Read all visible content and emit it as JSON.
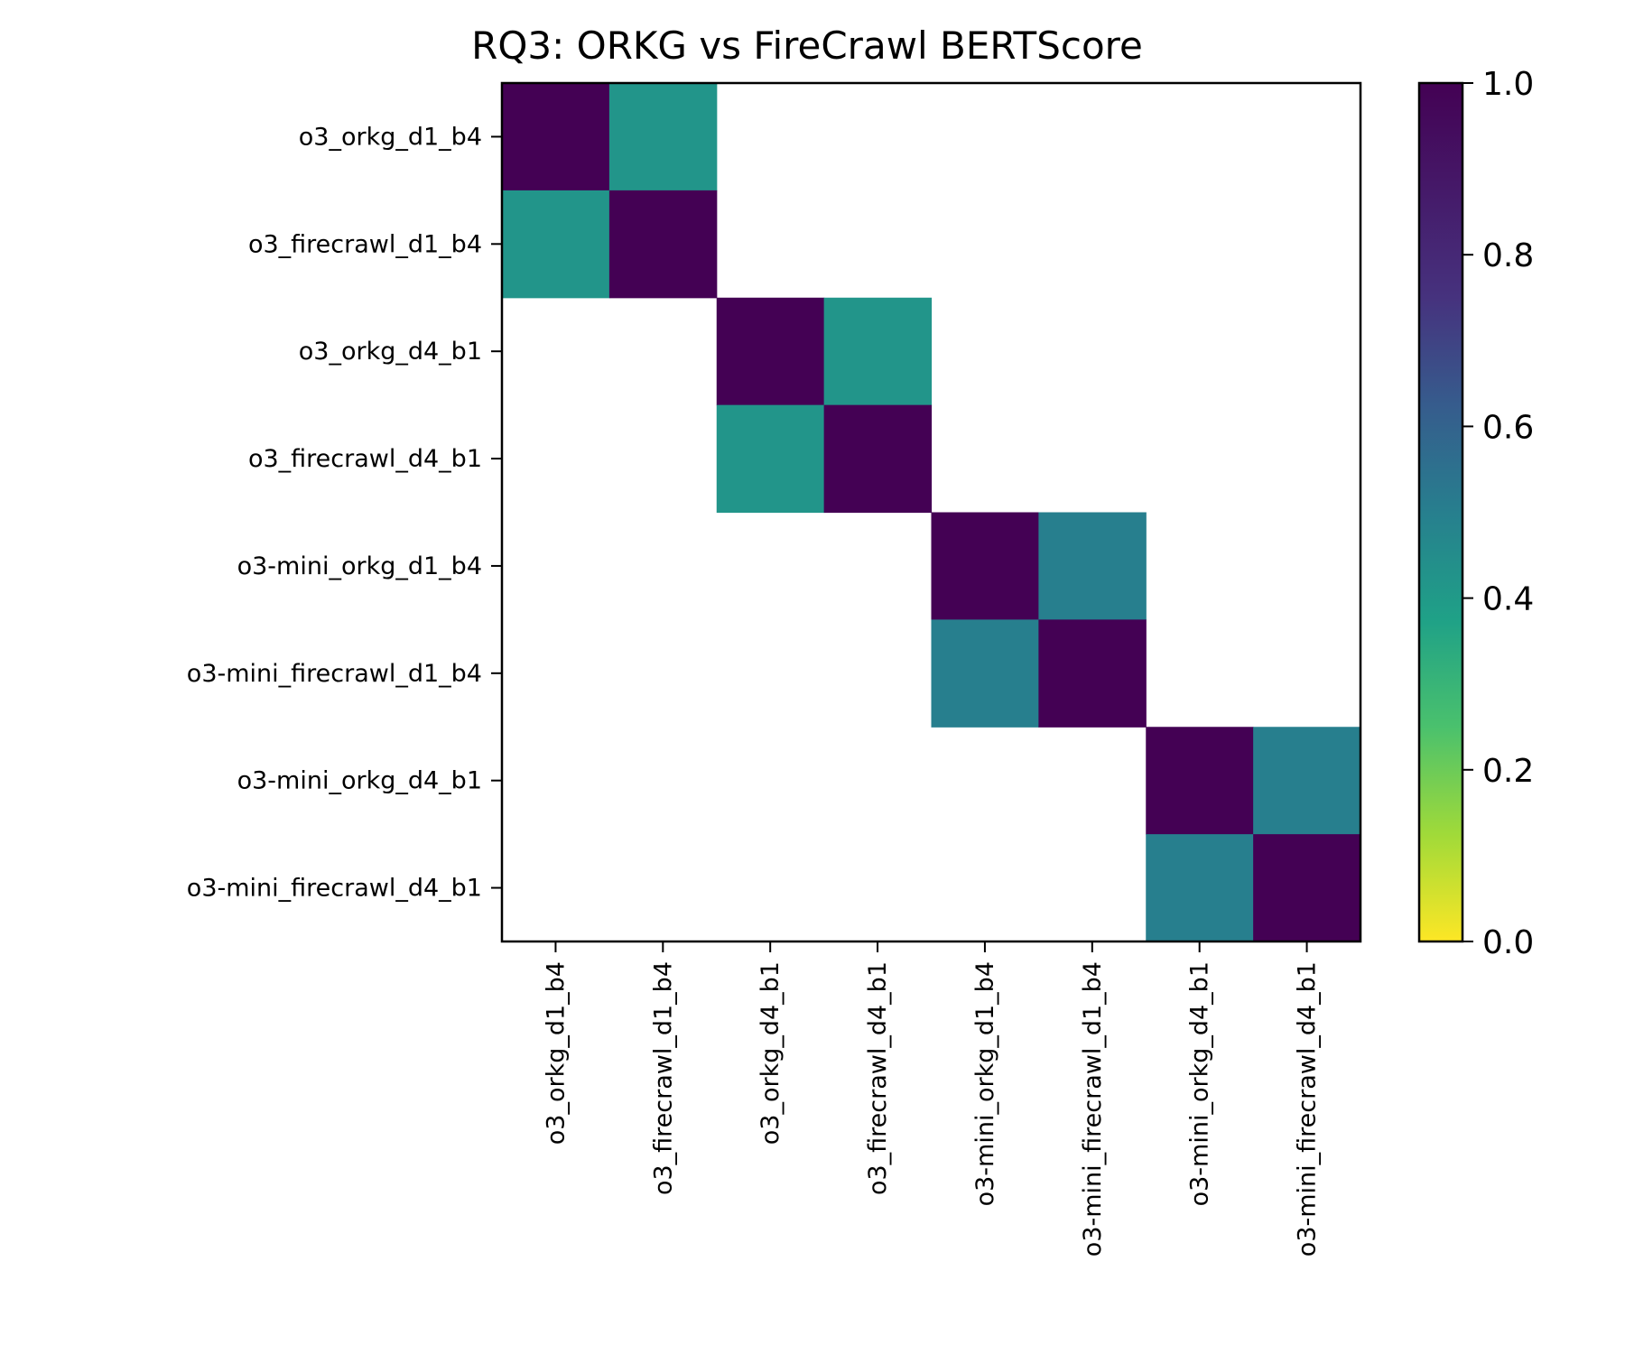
{
  "chart_data": {
    "type": "heatmap",
    "title": "RQ3: ORKG vs FireCrawl BERTScore",
    "xlabel": "",
    "ylabel": "",
    "row_labels": [
      "o3_orkg_d1_b4",
      "o3_firecrawl_d1_b4",
      "o3_orkg_d4_b1",
      "o3_firecrawl_d4_b1",
      "o3-mini_orkg_d1_b4",
      "o3-mini_firecrawl_d1_b4",
      "o3-mini_orkg_d4_b1",
      "o3-mini_firecrawl_d4_b1"
    ],
    "col_labels": [
      "o3_orkg_d1_b4",
      "o3_firecrawl_d1_b4",
      "o3_orkg_d4_b1",
      "o3_firecrawl_d4_b1",
      "o3-mini_orkg_d1_b4",
      "o3-mini_firecrawl_d1_b4",
      "o3-mini_orkg_d4_b1",
      "o3-mini_firecrawl_d4_b1"
    ],
    "matrix": [
      [
        1.0,
        0.42,
        null,
        null,
        null,
        null,
        null,
        null
      ],
      [
        0.42,
        1.0,
        null,
        null,
        null,
        null,
        null,
        null
      ],
      [
        null,
        null,
        1.0,
        0.42,
        null,
        null,
        null,
        null
      ],
      [
        null,
        null,
        0.42,
        1.0,
        null,
        null,
        null,
        null
      ],
      [
        null,
        null,
        null,
        null,
        1.0,
        0.5,
        null,
        null
      ],
      [
        null,
        null,
        null,
        null,
        0.5,
        1.0,
        null,
        null
      ],
      [
        null,
        null,
        null,
        null,
        null,
        null,
        1.0,
        0.5
      ],
      [
        null,
        null,
        null,
        null,
        null,
        null,
        0.5,
        1.0
      ]
    ],
    "colormap": "viridis_r",
    "vmin": 0.0,
    "vmax": 1.0,
    "colorbar_ticks": [
      "0.0",
      "0.2",
      "0.4",
      "0.6",
      "0.8",
      "1.0"
    ],
    "grid": false
  }
}
